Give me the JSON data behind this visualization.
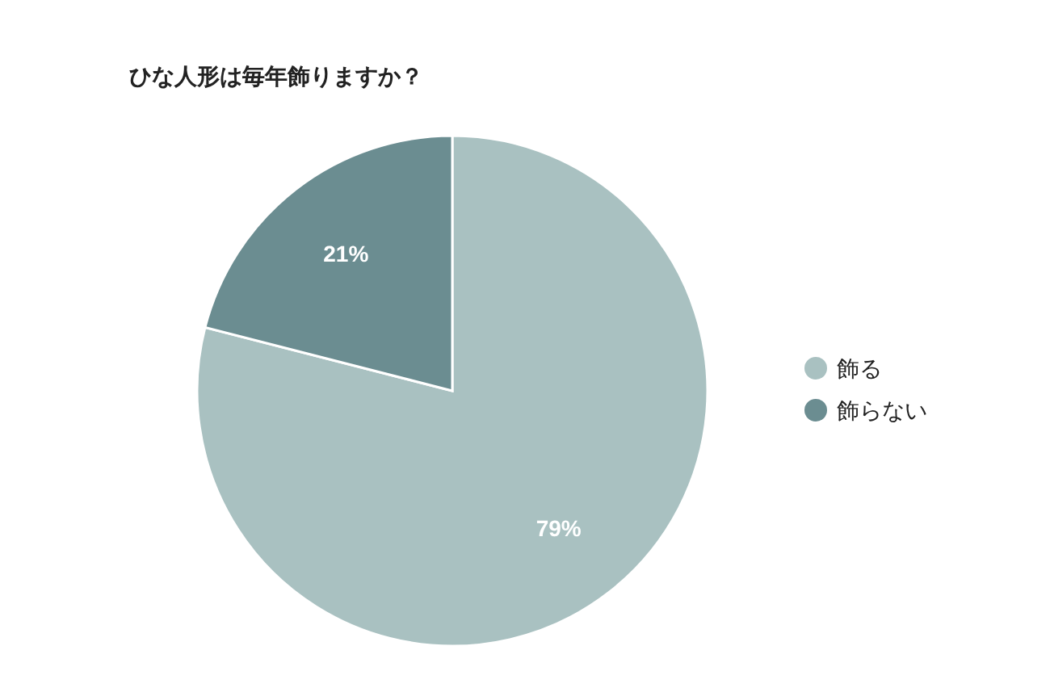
{
  "chart_data": {
    "type": "pie",
    "title": "ひな人形は毎年飾りますか？",
    "categories": [
      "飾る",
      "飾らない"
    ],
    "values": [
      79,
      21
    ],
    "colors": [
      "#a9c1c1",
      "#6b8d91"
    ],
    "value_labels": [
      "79%",
      "21%"
    ],
    "legend": "right"
  }
}
